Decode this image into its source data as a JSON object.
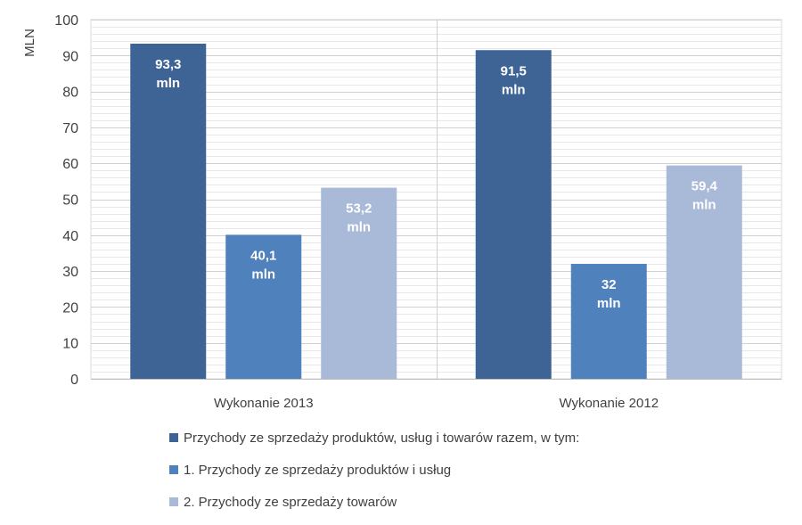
{
  "chart_data": {
    "type": "bar",
    "ylabel": "MLN",
    "ylim": [
      0,
      100
    ],
    "yticks": [
      0,
      10,
      20,
      30,
      40,
      50,
      60,
      70,
      80,
      90,
      100
    ],
    "grid": true,
    "legend_position": "bottom",
    "categories": [
      "Wykonanie 2013",
      "Wykonanie 2012"
    ],
    "series": [
      {
        "name": "Przychody ze sprzedaży produktów, usług i towarów razem, w tym:",
        "color": "#3E6496",
        "values": [
          93.3,
          91.5
        ],
        "labels": [
          [
            "93,3",
            "mln"
          ],
          [
            "91,5",
            "mln"
          ]
        ]
      },
      {
        "name": "1. Przychody ze sprzedaży produktów i usług",
        "color": "#4F81BD",
        "values": [
          40.1,
          32
        ],
        "labels": [
          [
            "40,1",
            "mln"
          ],
          [
            "32",
            "mln"
          ]
        ]
      },
      {
        "name": "2. Przychody ze sprzedaży towarów",
        "color": "#A9B9D8",
        "values": [
          53.2,
          59.4
        ],
        "labels": [
          [
            "53,2",
            "mln"
          ],
          [
            "59,4",
            "mln"
          ]
        ]
      }
    ]
  }
}
